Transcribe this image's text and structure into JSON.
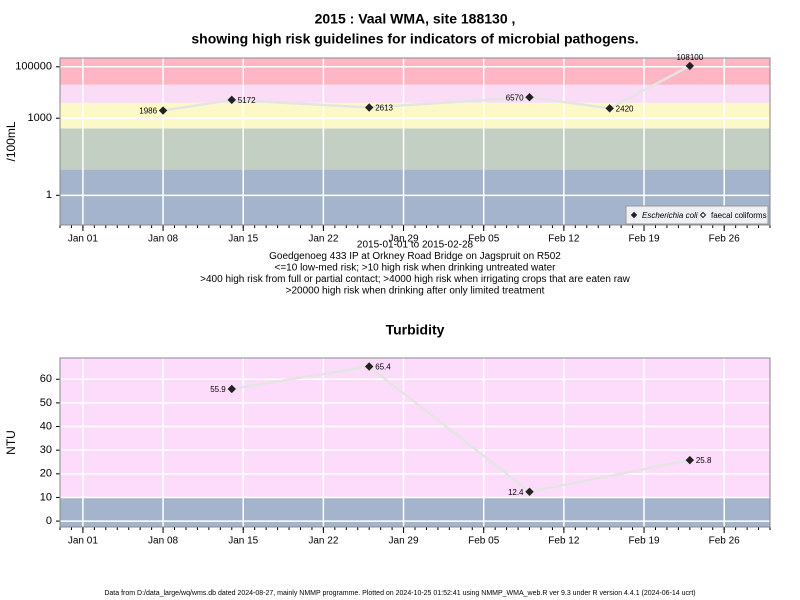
{
  "chart_data": [
    {
      "type": "line",
      "title": [
        "2015 : Vaal WMA, site 188130 ,",
        "showing high risk guidelines for indicators of microbial pathogens."
      ],
      "y_label": "/100mL",
      "log_y": true,
      "x": [
        "2015-01-08",
        "2015-01-14",
        "2015-01-26",
        "2015-02-09",
        "2015-02-16",
        "2015-02-23"
      ],
      "series": [
        {
          "name": "Escherichia coli",
          "color": "#222222",
          "marker": "filled",
          "values": [
            1986,
            5172,
            2613,
            6570,
            2420,
            108100
          ]
        },
        {
          "name": "faecal coliforms",
          "color": "#222222",
          "marker": "hollow",
          "values": [
            null,
            null,
            null,
            null,
            null,
            null
          ]
        }
      ],
      "xlim": [
        "2014-12-30",
        "2015-03-02"
      ],
      "xticks": [
        {
          "value": "2015-01-01",
          "label": "Jan 01"
        },
        {
          "value": "2015-01-08",
          "label": "Jan 08"
        },
        {
          "value": "2015-01-15",
          "label": "Jan 15"
        },
        {
          "value": "2015-01-22",
          "label": "Jan 22"
        },
        {
          "value": "2015-01-29",
          "label": "Jan 29"
        },
        {
          "value": "2015-02-05",
          "label": "Feb 05"
        },
        {
          "value": "2015-02-12",
          "label": "Feb 12"
        },
        {
          "value": "2015-02-19",
          "label": "Feb 19"
        },
        {
          "value": "2015-02-26",
          "label": "Feb 26"
        }
      ],
      "ylim": [
        0.07,
        220000
      ],
      "yticks": [
        1,
        1000,
        100000
      ],
      "band_breaks": [
        10,
        400,
        4000,
        20000
      ],
      "band_colors": [
        "#a3b4cc",
        "#c4cfc4",
        "#fdf8c8",
        "#fadcf7",
        "#ffb6c4"
      ],
      "grid": true,
      "legend": "bottom-right",
      "notes": [
        "2015-01-01 to 2015-02-28",
        "Goedgenoeg 433 IP at Orkney Road Bridge on Jagspruit on R502",
        "<=10 low-med risk; >10 high risk when drinking untreated water",
        ">400 high risk from full or partial contact; >4000 high risk when irrigating crops that are eaten raw",
        ">20000 high risk when drinking after only limited treatment"
      ]
    },
    {
      "type": "line",
      "title": [
        "Turbidity"
      ],
      "y_label": "NTU",
      "log_y": false,
      "x": [
        "2015-01-14",
        "2015-01-26",
        "2015-02-09",
        "2015-02-23"
      ],
      "series": [
        {
          "name": "Turbidity",
          "color": "#222222",
          "marker": "filled",
          "values": [
            55.9,
            65.4,
            12.4,
            25.8
          ]
        }
      ],
      "xlim": [
        "2014-12-30",
        "2015-03-02"
      ],
      "xticks": [
        {
          "value": "2015-01-01",
          "label": "Jan 01"
        },
        {
          "value": "2015-01-08",
          "label": "Jan 08"
        },
        {
          "value": "2015-01-15",
          "label": "Jan 15"
        },
        {
          "value": "2015-01-22",
          "label": "Jan 22"
        },
        {
          "value": "2015-01-29",
          "label": "Jan 29"
        },
        {
          "value": "2015-02-05",
          "label": "Feb 05"
        },
        {
          "value": "2015-02-12",
          "label": "Feb 12"
        },
        {
          "value": "2015-02-19",
          "label": "Feb 19"
        },
        {
          "value": "2015-02-26",
          "label": "Feb 26"
        }
      ],
      "ylim": [
        -2.5,
        69
      ],
      "yticks": [
        0,
        10,
        20,
        30,
        40,
        50,
        60
      ],
      "band_breaks": [
        10
      ],
      "band_colors": [
        "#a3b4cc",
        "#fcdcfa"
      ],
      "grid": true
    }
  ],
  "footer": "Data from D:/data_large/wq/wms.db dated 2024-08-27, mainly NMMP programme. Plotted on 2024-10-25 01:52:41 using NMMP_WMA_web.R ver 9.3 under R version 4.4.1 (2024-06-14 ucrt)"
}
